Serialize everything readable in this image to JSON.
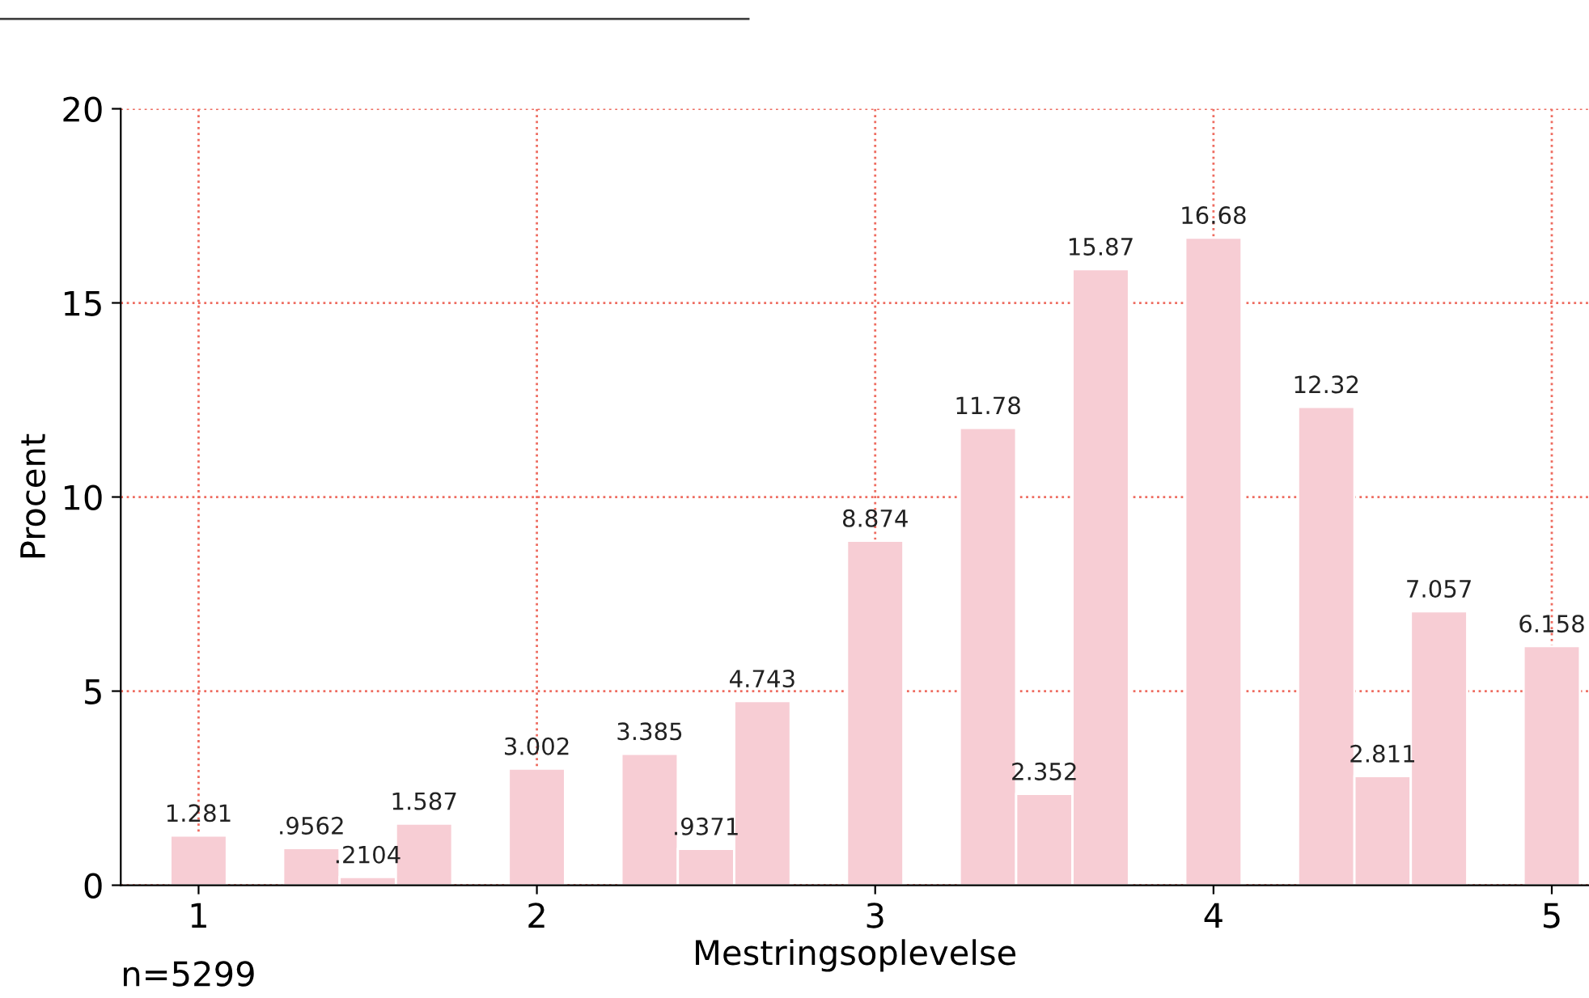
{
  "chart_data": {
    "type": "histogram",
    "xlabel": "Mestringsoplevelse",
    "ylabel": "Procent",
    "bins": [
      0.9167,
      1.0833,
      1.25,
      1.4167,
      1.5833,
      1.75,
      1.9167,
      2.0833,
      2.25,
      2.4167,
      2.5833,
      2.75,
      2.9167,
      3.0833,
      3.25,
      3.4167,
      3.5833,
      3.75,
      3.9167,
      4.0833,
      4.25,
      4.4167,
      4.5833,
      4.75,
      4.9167,
      5.0833
    ],
    "values": [
      1.281,
      0,
      0.9562,
      0.2104,
      1.587,
      0,
      3.002,
      0,
      3.385,
      0.9371,
      4.743,
      0,
      8.874,
      0,
      11.78,
      2.352,
      15.87,
      0,
      16.68,
      0,
      12.32,
      2.811,
      7.057,
      0,
      6.158
    ],
    "value_labels": [
      "1.281",
      null,
      ".9562",
      ".2104",
      "1.587",
      null,
      "3.002",
      null,
      "3.385",
      ".9371",
      "4.743",
      null,
      "8.874",
      null,
      "11.78",
      "2.352",
      "15.87",
      null,
      "16.68",
      null,
      "12.32",
      "2.811",
      "7.057",
      null,
      "6.158"
    ],
    "color": "#f7cdd4",
    "xlim": [
      0.77,
      5.11
    ],
    "xticks": [
      1,
      2,
      3,
      4,
      5
    ],
    "ylim": [
      0,
      20
    ],
    "yticks": [
      0,
      5,
      10,
      15,
      20
    ],
    "grid": true,
    "annotations": [
      "n=5299"
    ]
  }
}
